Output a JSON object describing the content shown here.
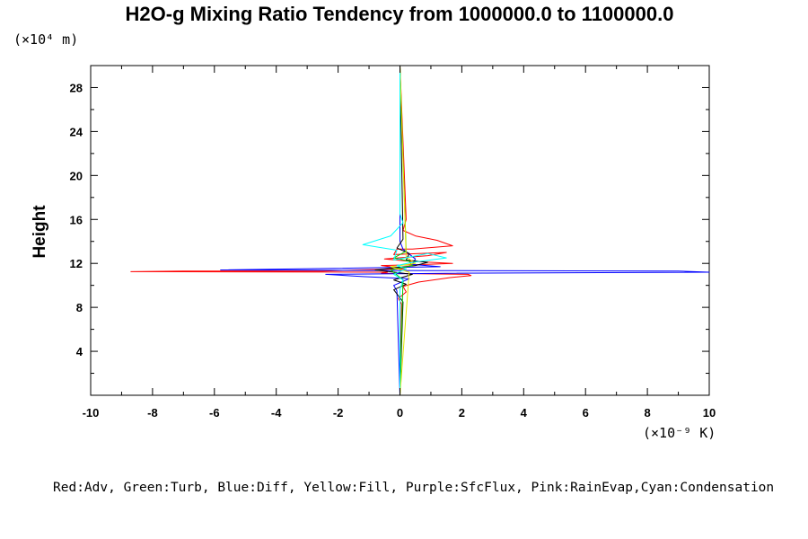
{
  "chart_data": {
    "type": "line",
    "title": "H2O-g Mixing Ratio Tendency from 1000000.0 to 1100000.0",
    "ylabel": "Height",
    "y_unit": "(×10⁴ m)",
    "x_unit": "(×10⁻⁹ K)",
    "xlim": [
      -10,
      10
    ],
    "ylim": [
      0,
      30
    ],
    "x_ticks": [
      "-10",
      "-8",
      "-6",
      "-4",
      "-2",
      "0",
      "2",
      "4",
      "6",
      "8",
      "10"
    ],
    "y_ticks": [
      "4",
      "8",
      "12",
      "16",
      "20",
      "24",
      "28"
    ],
    "grid": false,
    "legend_text": "Red:Adv, Green:Turb, Blue:Diff, Yellow:Fill, Purple:SfcFlux, Pink:RainEvap,Cyan:Condensation",
    "series": [
      {
        "color": "#ff0000",
        "x": [
          0,
          0.05,
          -0.05,
          0.2,
          0.1,
          0.6,
          1.6,
          2.3,
          2.2,
          -0.6,
          -0.4,
          -8.7,
          -7,
          -2.5,
          -1.5,
          0.2,
          -0.6,
          0.8,
          1.7,
          0.3,
          -0.5,
          0.9,
          1.5,
          -0.2,
          -0.1,
          0.4,
          1.7,
          1.2,
          0.5,
          0.1,
          0.2,
          0
        ],
        "y": [
          0,
          8.3,
          8.8,
          9.4,
          9.9,
          10.3,
          10.7,
          10.9,
          11,
          11.1,
          11.2,
          11.25,
          11.3,
          11.3,
          11.4,
          11.5,
          11.8,
          11.9,
          12,
          12.2,
          12.4,
          12.7,
          13,
          12.8,
          13.3,
          13.3,
          13.6,
          14.1,
          14.5,
          15,
          16,
          30
        ]
      },
      {
        "color": "#0000ff",
        "x": [
          0,
          -0.1,
          -0.2,
          0.3,
          -1.2,
          -2.4,
          1.5,
          10,
          9,
          1,
          -5.8,
          -3.2,
          1.3,
          0.4,
          0.5,
          0.1,
          0,
          0
        ],
        "y": [
          0,
          9.5,
          10,
          10.6,
          10.8,
          11,
          11.1,
          11.2,
          11.3,
          11.35,
          11.4,
          11.5,
          11.7,
          11.9,
          12.4,
          13.3,
          14,
          30
        ]
      },
      {
        "color": "#000000",
        "x": [
          0,
          0.1,
          -0.2,
          0.2,
          -0.2,
          0.4,
          -0.8,
          0.5,
          0.9,
          0.2,
          0.3,
          -0.1,
          0.1,
          0
        ],
        "y": [
          0,
          8.5,
          9.6,
          10.1,
          10.5,
          11,
          11.4,
          11.8,
          12.1,
          12.3,
          12.9,
          13.4,
          14.2,
          30
        ]
      },
      {
        "color": "#00c800",
        "x": [
          0,
          0.1,
          -0.3,
          0.4,
          0.3,
          -0.2,
          0.2,
          0
        ],
        "y": [
          0,
          10.5,
          11.4,
          11.8,
          12.2,
          12.5,
          13.1,
          30
        ]
      },
      {
        "color": "#e6e600",
        "x": [
          0,
          0.3,
          -0.3,
          0.5,
          0.2,
          0
        ],
        "y": [
          0,
          11.2,
          11.7,
          12,
          12.6,
          30
        ]
      },
      {
        "color": "#00ffff",
        "x": [
          0,
          0,
          0.1,
          -0.2,
          0.2,
          -0.1,
          0.4,
          1.5,
          0.9,
          -0.2,
          -0.1,
          -1.2,
          -0.3,
          0.1,
          0,
          0
        ],
        "y": [
          0,
          9.6,
          10.5,
          11,
          11.5,
          11.8,
          12.1,
          12.5,
          12.9,
          12.3,
          13.2,
          13.7,
          14.5,
          15.7,
          16.5,
          30
        ]
      }
    ]
  }
}
